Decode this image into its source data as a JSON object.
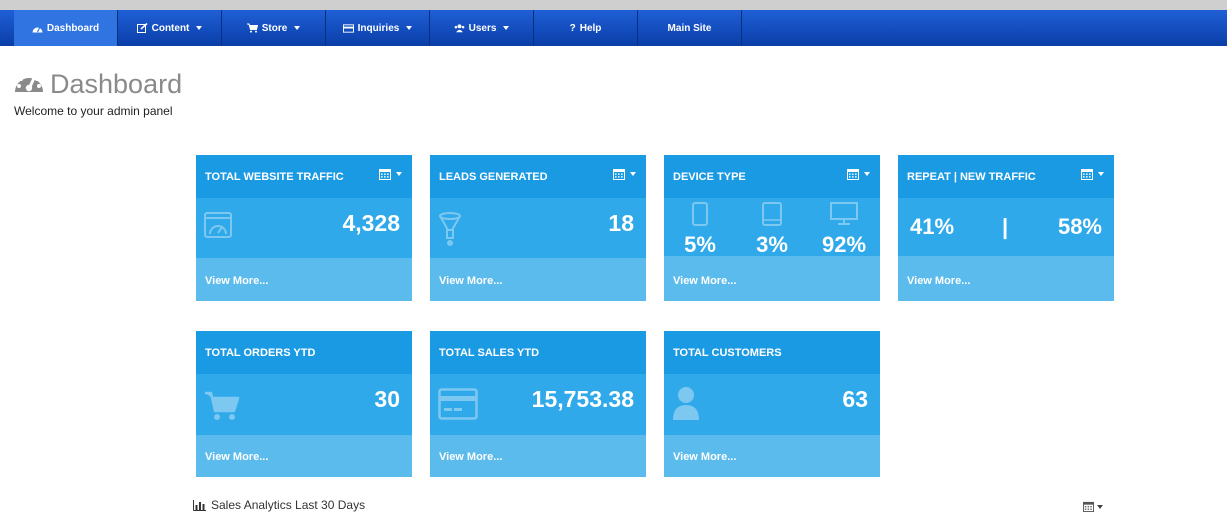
{
  "nav": {
    "items": [
      {
        "label": "Dashboard",
        "icon": "dashboard-icon"
      },
      {
        "label": "Content",
        "icon": "edit-icon"
      },
      {
        "label": "Store",
        "icon": "cart-icon"
      },
      {
        "label": "Inquiries",
        "icon": "inbox-icon"
      },
      {
        "label": "Users",
        "icon": "users-icon"
      },
      {
        "label": "Help",
        "icon": "question-icon"
      },
      {
        "label": "Main Site",
        "icon": ""
      }
    ],
    "help_prefix": "?"
  },
  "header": {
    "title": "Dashboard",
    "subtitle": "Welcome to your admin panel"
  },
  "cards": {
    "traffic": {
      "title": "TOTAL WEBSITE TRAFFIC",
      "value": "4,328",
      "footer": "View More..."
    },
    "leads": {
      "title": "LEADS GENERATED",
      "value": "18",
      "footer": "View More..."
    },
    "device": {
      "title": "DEVICE TYPE",
      "mobile": "5%",
      "tablet": "3%",
      "desktop": "92%",
      "footer": "View More..."
    },
    "repeat": {
      "title": "REPEAT | NEW TRAFFIC",
      "repeat": "41%",
      "separator": "|",
      "new": "58%",
      "footer": "View More..."
    },
    "orders": {
      "title": "TOTAL ORDERS YTD",
      "value": "30",
      "footer": "View More..."
    },
    "sales": {
      "title": "TOTAL SALES YTD",
      "value": "15,753.38",
      "footer": "View More..."
    },
    "customers": {
      "title": "TOTAL CUSTOMERS",
      "value": "63",
      "footer": "View More..."
    }
  },
  "analytics": {
    "title": "Sales Analytics Last 30 Days"
  },
  "colors": {
    "nav": "#1f5fd6",
    "card_header": "#1b9ae4",
    "card_body": "#2fa9ea",
    "card_footer": "#5bbbec"
  }
}
